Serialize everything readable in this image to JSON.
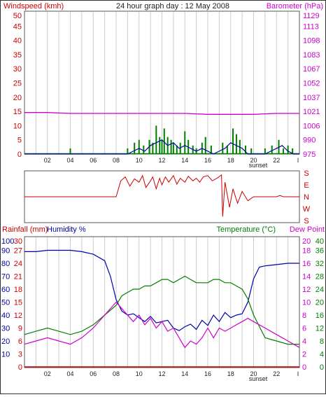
{
  "header": {
    "left_label": "Windspeed (kmh)",
    "title": "24 hour graph day : 12 May 2008",
    "right_label": "Barometer (hPa)"
  },
  "middle": {
    "direction_labels": [
      "S",
      "E",
      "N",
      "W",
      "S"
    ]
  },
  "bottom_header": {
    "rain_label": "Rainfall (mm)",
    "humidity_label": "Humidity %",
    "temperature_label": "Temperature (°C)",
    "dewpoint_label": "Dew Point"
  },
  "x_axis": {
    "hour_ticks": [
      "02",
      "04",
      "06",
      "08",
      "10",
      "12",
      "14",
      "16",
      "18",
      "20",
      "22"
    ],
    "end_tick": "I",
    "sunset_label": "sunset"
  },
  "colors": {
    "wind_axis": "#cc0000",
    "baro_axis": "#cc00cc",
    "gust": "#008000",
    "wind": "#0000aa",
    "barometer": "#cc00cc",
    "direction": "#cc0000",
    "humidity": "#0000aa",
    "temperature": "#008000",
    "dewpoint": "#cc00cc",
    "rainfall": "#cc0000",
    "grid": "#cccccc"
  },
  "chart_data": [
    {
      "type": "bar",
      "title": "24 hour graph day : 12 May 2008",
      "ylabel": "Windspeed (kmh)",
      "y2label": "Barometer (hPa)",
      "x_range_hours": [
        0,
        24
      ],
      "ylim": [
        0,
        50
      ],
      "yticks": [
        0,
        5,
        10,
        15,
        20,
        25,
        30,
        35,
        40,
        45,
        50
      ],
      "y2ticks": [
        975,
        990,
        1006,
        1021,
        1037,
        1052,
        1067,
        1083,
        1098,
        1113,
        1129
      ],
      "grid": true,
      "gust_bars": [
        [
          4.0,
          2
        ],
        [
          9.0,
          2
        ],
        [
          9.6,
          4
        ],
        [
          10.0,
          5
        ],
        [
          10.4,
          3
        ],
        [
          10.9,
          5
        ],
        [
          11.2,
          4
        ],
        [
          11.5,
          10
        ],
        [
          11.8,
          6
        ],
        [
          12.0,
          5
        ],
        [
          12.2,
          9
        ],
        [
          12.5,
          6
        ],
        [
          12.8,
          5
        ],
        [
          13.0,
          4
        ],
        [
          13.3,
          3
        ],
        [
          13.6,
          4
        ],
        [
          14.0,
          8
        ],
        [
          14.3,
          5
        ],
        [
          14.7,
          3
        ],
        [
          15.0,
          2
        ],
        [
          15.5,
          4
        ],
        [
          15.8,
          6
        ],
        [
          16.3,
          3
        ],
        [
          17.3,
          4
        ],
        [
          17.7,
          3
        ],
        [
          18.2,
          9
        ],
        [
          18.5,
          7
        ],
        [
          18.8,
          5
        ],
        [
          19.3,
          3
        ],
        [
          19.8,
          2
        ],
        [
          21.0,
          2
        ],
        [
          21.6,
          3
        ],
        [
          22.2,
          5
        ],
        [
          22.6,
          2
        ],
        [
          23.0,
          3
        ],
        [
          23.4,
          2
        ]
      ],
      "wind_series": {
        "name": "Wind",
        "x": [
          0,
          8.5,
          9.0,
          9.5,
          10.0,
          10.5,
          11.0,
          11.5,
          12.0,
          12.5,
          13.0,
          13.5,
          14.0,
          14.5,
          15.0,
          15.5,
          16.0,
          16.5,
          17.0,
          17.5,
          18.0,
          18.5,
          19.0,
          19.5,
          20.0,
          21.0,
          21.5,
          22.0,
          22.5,
          23.0,
          23.5,
          24.0
        ],
        "y": [
          0,
          0,
          0,
          1,
          2,
          1,
          3,
          4,
          5,
          3,
          4,
          2,
          3,
          2,
          1,
          2,
          1,
          0,
          1,
          2,
          4,
          3,
          2,
          0,
          0,
          0,
          1,
          2,
          3,
          1,
          0,
          0
        ]
      },
      "barometer_series": {
        "name": "Barometer",
        "x": [
          0,
          2,
          4,
          6,
          8,
          10,
          12,
          14,
          16,
          18,
          20,
          22,
          24
        ],
        "y": [
          1020,
          1020,
          1019,
          1019,
          1019,
          1019,
          1019,
          1019,
          1018,
          1018,
          1018,
          1019,
          1019
        ]
      }
    },
    {
      "type": "line",
      "series_name": "Wind direction",
      "x_range_hours": [
        0,
        24
      ],
      "y_labels": [
        "S",
        "E",
        "N",
        "W",
        "S"
      ],
      "ylim_degrees": [
        0,
        360
      ],
      "x": [
        0,
        7,
        8.0,
        8.4,
        8.8,
        9.2,
        9.6,
        10.0,
        10.3,
        10.6,
        11.0,
        11.2,
        11.5,
        11.8,
        12.0,
        12.3,
        12.6,
        13.0,
        13.3,
        13.6,
        14.0,
        14.3,
        14.7,
        15.0,
        15.3,
        15.6,
        16.0,
        16.4,
        16.8,
        17.2,
        17.3,
        17.5,
        17.9,
        18.2,
        18.6,
        19.0,
        19.5,
        20.0,
        21.0,
        22.0,
        22.3,
        22.6,
        24.0
      ],
      "y": [
        180,
        180,
        180,
        60,
        30,
        100,
        45,
        70,
        20,
        110,
        60,
        30,
        120,
        40,
        90,
        30,
        70,
        20,
        85,
        40,
        70,
        25,
        60,
        40,
        70,
        30,
        20,
        60,
        40,
        15,
        330,
        70,
        260,
        120,
        230,
        140,
        210,
        180,
        180,
        180,
        170,
        180,
        180
      ]
    },
    {
      "type": "line",
      "title": "",
      "x_range_hours": [
        0,
        24
      ],
      "humidity_ticks": [
        10,
        20,
        30,
        40,
        50,
        60,
        70,
        80,
        90,
        100
      ],
      "rainfall_ticks": [
        0,
        3,
        6,
        9,
        12,
        15,
        18,
        21,
        24,
        27,
        30
      ],
      "temperature_ticks": [
        0,
        4,
        8,
        12,
        16,
        20,
        24,
        28,
        32,
        36,
        40
      ],
      "dewpoint_ticks": [
        0,
        2,
        4,
        6,
        8,
        10,
        12,
        14,
        16,
        18,
        20
      ],
      "grid": true,
      "series": [
        {
          "name": "Humidity",
          "axis": "humidity",
          "x": [
            0,
            1,
            2,
            3,
            4,
            5,
            6,
            7,
            7.5,
            8.0,
            8.5,
            9.0,
            9.5,
            10.0,
            10.5,
            11.0,
            11.5,
            12.0,
            12.5,
            13.0,
            13.5,
            14.0,
            14.5,
            15.0,
            15.5,
            16.0,
            16.5,
            17.0,
            17.5,
            18.0,
            18.5,
            19.0,
            19.5,
            20.0,
            20.5,
            21.0,
            22.0,
            23.0,
            24.0
          ],
          "y": [
            89,
            89,
            90,
            90,
            90,
            89,
            87,
            82,
            70,
            52,
            43,
            40,
            41,
            38,
            35,
            39,
            34,
            35,
            36,
            30,
            28,
            31,
            33,
            29,
            36,
            32,
            40,
            35,
            42,
            38,
            40,
            41,
            50,
            68,
            77,
            78,
            79,
            80,
            80
          ]
        },
        {
          "name": "Temperature",
          "axis": "temperature",
          "x": [
            0,
            1,
            2,
            3,
            4,
            5,
            6,
            7,
            8,
            8.5,
            9,
            9.5,
            10,
            10.5,
            11,
            11.5,
            12,
            12.5,
            13,
            13.5,
            14,
            14.5,
            15,
            15.5,
            16,
            16.5,
            17,
            17.5,
            18,
            18.5,
            19,
            19.5,
            20,
            21,
            22,
            23,
            24
          ],
          "y": [
            10,
            11,
            12,
            11,
            10,
            11,
            13,
            16,
            19,
            22,
            23,
            24,
            24,
            25,
            25,
            26,
            27,
            27,
            26,
            27,
            28,
            27,
            26,
            26,
            26,
            27,
            27,
            26,
            26,
            25,
            24,
            21,
            16,
            9,
            8,
            7,
            7
          ]
        },
        {
          "name": "Dew Point",
          "axis": "dewpoint",
          "x": [
            0,
            1,
            2,
            3,
            4,
            5,
            6,
            7,
            8,
            8.5,
            9,
            9.5,
            10,
            10.5,
            11,
            11.5,
            12,
            12.5,
            13,
            13.5,
            14,
            14.5,
            15,
            15.5,
            16,
            16.5,
            17,
            17.5,
            18,
            18.5,
            19,
            19.5,
            20,
            21,
            22,
            23,
            24
          ],
          "y": [
            3.5,
            4,
            4.5,
            4,
            3.5,
            4.5,
            6,
            8,
            10,
            9,
            8,
            7,
            8,
            6.5,
            7.5,
            6,
            7,
            5.5,
            6,
            4.5,
            3,
            4,
            3.5,
            4.5,
            6,
            4.5,
            6,
            5.5,
            6,
            6.5,
            7,
            7.5,
            7,
            6,
            5,
            4,
            3
          ]
        },
        {
          "name": "Rainfall",
          "axis": "rainfall",
          "x": [
            0,
            24
          ],
          "y": [
            0,
            0
          ]
        }
      ]
    }
  ]
}
